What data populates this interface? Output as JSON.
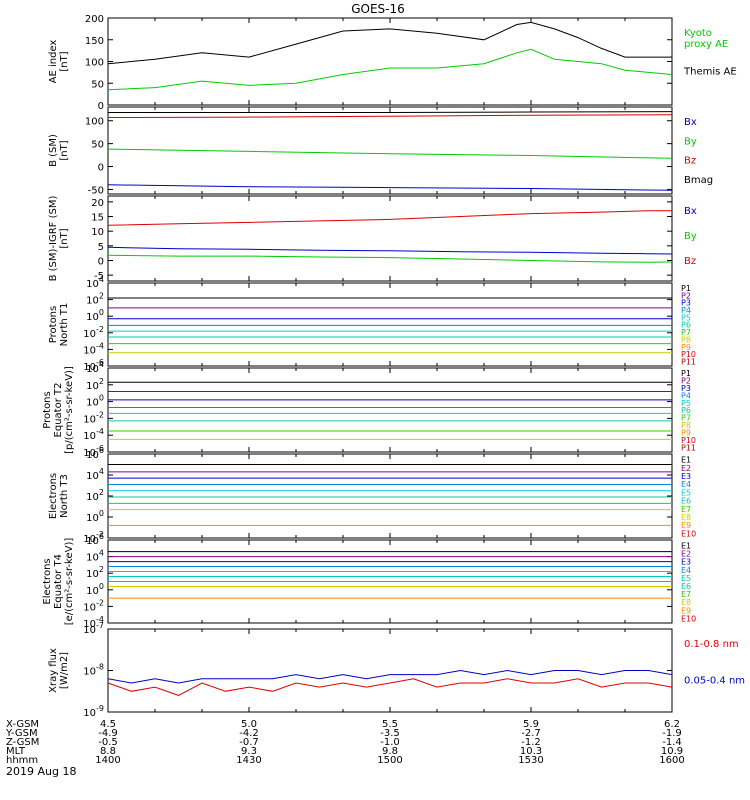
{
  "title": "GOES-16",
  "date_label": "2019 Aug 18",
  "ephemeris": {
    "rows": [
      {
        "label": "X-GSM",
        "values": [
          "4.5",
          "5.0",
          "5.5",
          "5.9",
          "6.2"
        ]
      },
      {
        "label": "Y-GSM",
        "values": [
          "-4.9",
          "-4.2",
          "-3.5",
          "-2.7",
          "-1.9"
        ]
      },
      {
        "label": "Z-GSM",
        "values": [
          "-0.5",
          "-0.7",
          "-1.0",
          "-1.2",
          "-1.4"
        ]
      },
      {
        "label": "MLT",
        "values": [
          "8.8",
          "9.3",
          "9.8",
          "10.3",
          "10.9"
        ]
      },
      {
        "label": "hhmm",
        "values": [
          "1400",
          "1430",
          "1500",
          "1530",
          "1600"
        ]
      }
    ]
  },
  "colors": {
    "black": "#000000",
    "green": "#00cc00",
    "red": "#dd0000",
    "blue": "#0000cc",
    "p_colors": [
      "#000000",
      "#880088",
      "#0000cc",
      "#0088dd",
      "#00cccc",
      "#00ccaa",
      "#33cc00",
      "#cccc00",
      "#ff8800",
      "#dd0000",
      "#bb0000"
    ]
  },
  "chart_data": [
    {
      "id": "ae",
      "type": "line",
      "ylabel": "AE index\n[nT]",
      "ylim": [
        0,
        200
      ],
      "yticks": [
        "0",
        "50",
        "100",
        "150",
        "200"
      ],
      "x": [
        1400,
        1410,
        1420,
        1430,
        1440,
        1450,
        1500,
        1510,
        1520,
        1527,
        1530,
        1535,
        1540,
        1545,
        1550,
        1600
      ],
      "series": [
        {
          "name": "Kyoto\nproxy AE",
          "color": "#00cc00",
          "values": [
            35,
            40,
            55,
            45,
            50,
            70,
            85,
            85,
            95,
            120,
            128,
            105,
            100,
            95,
            80,
            70
          ]
        },
        {
          "name": "Themis AE",
          "color": "#000000",
          "values": [
            95,
            105,
            120,
            110,
            140,
            170,
            175,
            165,
            150,
            185,
            190,
            175,
            155,
            130,
            110,
            110
          ]
        }
      ]
    },
    {
      "id": "bsm",
      "type": "line",
      "ylabel": "B (SM)\n[nT]",
      "ylim": [
        -60,
        130
      ],
      "yticks": [
        "-50",
        "0",
        "50",
        "100"
      ],
      "x": [
        1400,
        1430,
        1500,
        1530,
        1600
      ],
      "series": [
        {
          "name": "Bx",
          "color": "#0000cc",
          "values": [
            -40,
            -44,
            -46,
            -48,
            -52
          ]
        },
        {
          "name": "By",
          "color": "#00cc00",
          "values": [
            38,
            33,
            28,
            24,
            18
          ]
        },
        {
          "name": "Bz",
          "color": "#dd0000",
          "values": [
            107,
            108,
            110,
            112,
            113
          ]
        },
        {
          "name": "Bmag",
          "color": "#000000",
          "values": [
            118,
            118,
            118,
            119,
            120
          ]
        }
      ]
    },
    {
      "id": "bdiff",
      "type": "line",
      "ylabel": "B (SM)-IGRF (SM)\n[nT]",
      "ylim": [
        -7,
        22
      ],
      "yticks": [
        "-5",
        "0",
        "5",
        "10",
        "15",
        "20"
      ],
      "x": [
        1400,
        1415,
        1430,
        1445,
        1500,
        1515,
        1530,
        1545,
        1555,
        1600
      ],
      "series": [
        {
          "name": "Bx",
          "color": "#0000cc",
          "values": [
            4.5,
            4,
            3.8,
            3.5,
            3.3,
            3,
            2.8,
            2.5,
            2.3,
            2.2
          ]
        },
        {
          "name": "By",
          "color": "#00cc00",
          "values": [
            1.8,
            1.5,
            1.5,
            1.2,
            1,
            0.5,
            0,
            -0.5,
            -0.6,
            -0.5
          ]
        },
        {
          "name": "Bz",
          "color": "#dd0000",
          "values": [
            12,
            12.5,
            13,
            13.5,
            14,
            15,
            16,
            16.5,
            17,
            17
          ]
        }
      ]
    },
    {
      "id": "pn",
      "type": "line",
      "log": true,
      "ylabel": "Protons\nNorth T1",
      "yexp": [
        -6,
        4
      ],
      "ytick_exps": [
        -6,
        -4,
        -2,
        0,
        2,
        4
      ],
      "channels": [
        "P1",
        "P2",
        "P3",
        "P4",
        "P5",
        "P6",
        "P7",
        "P8",
        "P9",
        "P10",
        "P11"
      ],
      "levels": [
        2.2,
        1.0,
        -0.3,
        -1.1,
        -1.8,
        -2.5,
        -3.3,
        -4.4,
        null,
        null,
        null
      ]
    },
    {
      "id": "pe",
      "type": "line",
      "log": true,
      "ylabel": "Protons\nEquator T2\n[p/(cm²-s-sr-keV)]",
      "yexp": [
        -6,
        4
      ],
      "ytick_exps": [
        -6,
        -4,
        -2,
        0,
        2,
        4
      ],
      "channels": [
        "P1",
        "P2",
        "P3",
        "P4",
        "P5",
        "P6",
        "P7",
        "P8",
        "P9",
        "P10",
        "P11"
      ],
      "levels": [
        2.3,
        1.2,
        0.2,
        -0.7,
        -1.4,
        -2.3,
        -3.5,
        -4.5,
        null,
        null,
        null
      ]
    },
    {
      "id": "en",
      "type": "line",
      "log": true,
      "ylabel": "Electrons\nNorth T3",
      "yexp": [
        -2,
        6
      ],
      "ytick_exps": [
        -2,
        0,
        2,
        4,
        6
      ],
      "channels": [
        "E1",
        "E2",
        "E3",
        "E4",
        "E5",
        "E6",
        "E7",
        "E8",
        "E9",
        "E10"
      ],
      "levels": [
        5.0,
        4.3,
        3.7,
        3.1,
        2.5,
        1.9,
        1.3,
        0.7,
        -0.8,
        null
      ]
    },
    {
      "id": "ee",
      "type": "line",
      "log": true,
      "ylabel": "Electrons\nEquator T4\n[e/(cm²-s-sr-keV)]",
      "yexp": [
        -4,
        6
      ],
      "ytick_exps": [
        -4,
        -2,
        0,
        2,
        4,
        6
      ],
      "channels": [
        "E1",
        "E2",
        "E3",
        "E4",
        "E5",
        "E6",
        "E7",
        "E8",
        "E9",
        "E10"
      ],
      "levels": [
        4.6,
        4.0,
        3.4,
        2.8,
        2.2,
        1.6,
        1.0,
        0.4,
        -1.0,
        null
      ]
    },
    {
      "id": "xray",
      "type": "line",
      "log": true,
      "ylabel": "Xray flux\n[W/m2]",
      "yexp": [
        -9,
        -7
      ],
      "ytick_exps": [
        -9,
        -8,
        -7
      ],
      "x": [
        1400,
        1405,
        1410,
        1415,
        1420,
        1425,
        1430,
        1435,
        1440,
        1445,
        1450,
        1455,
        1500,
        1505,
        1510,
        1515,
        1520,
        1525,
        1530,
        1535,
        1540,
        1545,
        1550,
        1555,
        1600
      ],
      "series": [
        {
          "name": "0.1-0.8 nm",
          "color": "#dd0000",
          "values": [
            -8.3,
            -8.5,
            -8.4,
            -8.6,
            -8.3,
            -8.5,
            -8.4,
            -8.5,
            -8.3,
            -8.4,
            -8.3,
            -8.4,
            -8.3,
            -8.2,
            -8.4,
            -8.3,
            -8.3,
            -8.2,
            -8.3,
            -8.3,
            -8.2,
            -8.4,
            -8.3,
            -8.3,
            -8.4
          ]
        },
        {
          "name": "0.05-0.4 nm",
          "color": "#0000cc",
          "values": [
            -8.2,
            -8.3,
            -8.2,
            -8.3,
            -8.2,
            -8.2,
            -8.2,
            -8.2,
            -8.1,
            -8.2,
            -8.1,
            -8.2,
            -8.1,
            -8.1,
            -8.1,
            -8.0,
            -8.1,
            -8.0,
            -8.1,
            -8.0,
            -8.0,
            -8.1,
            -8.0,
            -8.0,
            -8.1
          ]
        }
      ]
    }
  ]
}
